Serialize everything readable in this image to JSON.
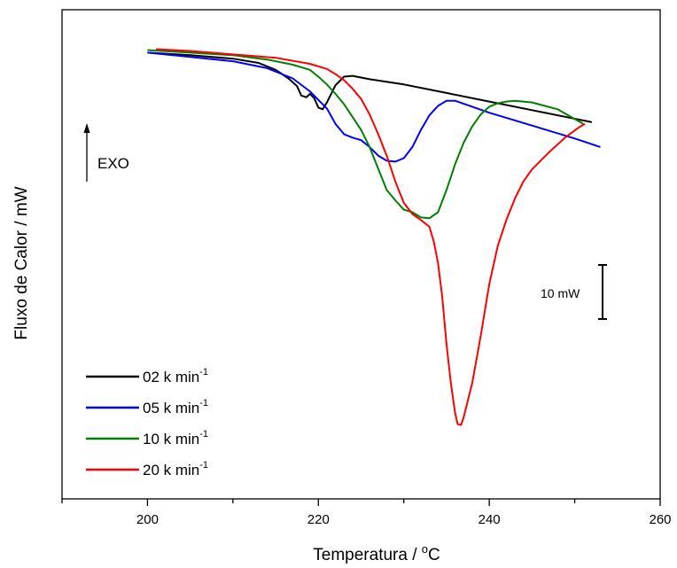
{
  "chart_data": {
    "type": "line",
    "title": "",
    "xlabel": "Temperatura / °C",
    "xlabel_parts": {
      "main": "Temperatura / ",
      "sup": "o",
      "tail": "C"
    },
    "ylabel": "Fluxo de Calor / mW",
    "xlim": [
      190,
      260
    ],
    "ylim": [
      -52,
      5
    ],
    "x_ticks": [
      200,
      220,
      240,
      260
    ],
    "y_ticks_shown": false,
    "grid": false,
    "legend_position": "bottom-left",
    "annotations": {
      "exo_label": "EXO",
      "scale_bar_label": "10 mW",
      "scale_bar_value_mW": 10
    },
    "series": [
      {
        "name": "02 k min-1",
        "legend_main": "02 k min",
        "legend_sup": "-1",
        "color": "#000000",
        "points": [
          [
            200,
            0
          ],
          [
            205,
            -0.3
          ],
          [
            210,
            -0.7
          ],
          [
            213,
            -1.2
          ],
          [
            215,
            -2.0
          ],
          [
            216.5,
            -3.0
          ],
          [
            217.5,
            -3.9
          ],
          [
            218,
            -5.0
          ],
          [
            218.6,
            -5.2
          ],
          [
            219,
            -4.8
          ],
          [
            219.5,
            -5.3
          ],
          [
            220,
            -6.4
          ],
          [
            220.5,
            -6.6
          ],
          [
            221,
            -5.8
          ],
          [
            222,
            -3.8
          ],
          [
            223,
            -2.8
          ],
          [
            224,
            -2.7
          ],
          [
            226,
            -3.1
          ],
          [
            230,
            -3.7
          ],
          [
            235,
            -4.7
          ],
          [
            240,
            -5.7
          ],
          [
            245,
            -6.7
          ],
          [
            250,
            -7.7
          ],
          [
            252,
            -8.1
          ]
        ]
      },
      {
        "name": "05 k min-1",
        "legend_main": "05 k min",
        "legend_sup": "-1",
        "color": "#0000ff",
        "points": [
          [
            200,
            0
          ],
          [
            205,
            -0.5
          ],
          [
            210,
            -1.0
          ],
          [
            214,
            -1.8
          ],
          [
            217,
            -3.0
          ],
          [
            219,
            -4.5
          ],
          [
            221,
            -6.5
          ],
          [
            222,
            -8.3
          ],
          [
            223,
            -9.5
          ],
          [
            224,
            -9.9
          ],
          [
            225,
            -10.2
          ],
          [
            226,
            -11.0
          ],
          [
            227,
            -12.0
          ],
          [
            228,
            -12.6
          ],
          [
            229,
            -12.7
          ],
          [
            230,
            -12.3
          ],
          [
            231,
            -11.0
          ],
          [
            232,
            -9.0
          ],
          [
            233,
            -7.3
          ],
          [
            234,
            -6.2
          ],
          [
            235,
            -5.6
          ],
          [
            236,
            -5.6
          ],
          [
            238,
            -6.3
          ],
          [
            240,
            -7.0
          ],
          [
            245,
            -8.5
          ],
          [
            250,
            -10.0
          ],
          [
            253,
            -11.0
          ]
        ]
      },
      {
        "name": "10 k min-1",
        "legend_main": "10 k min",
        "legend_sup": "-1",
        "color": "#008000",
        "points": [
          [
            200,
            0.3
          ],
          [
            205,
            0
          ],
          [
            210,
            -0.3
          ],
          [
            214,
            -0.8
          ],
          [
            217,
            -1.4
          ],
          [
            219,
            -2.0
          ],
          [
            220,
            -2.8
          ],
          [
            221,
            -3.7
          ],
          [
            222,
            -4.8
          ],
          [
            223,
            -6.0
          ],
          [
            224,
            -7.5
          ],
          [
            225,
            -9.0
          ],
          [
            226,
            -11.0
          ],
          [
            227,
            -13.5
          ],
          [
            228,
            -16.0
          ],
          [
            229,
            -17.2
          ],
          [
            230,
            -18.3
          ],
          [
            231,
            -18.6
          ],
          [
            232,
            -19.2
          ],
          [
            233,
            -19.3
          ],
          [
            234,
            -18.6
          ],
          [
            235,
            -16.0
          ],
          [
            236,
            -13.0
          ],
          [
            237,
            -10.5
          ],
          [
            238,
            -8.6
          ],
          [
            239,
            -7.2
          ],
          [
            240,
            -6.3
          ],
          [
            241,
            -5.9
          ],
          [
            242,
            -5.7
          ],
          [
            243,
            -5.6
          ],
          [
            245,
            -5.8
          ],
          [
            248,
            -6.6
          ],
          [
            251,
            -8.3
          ]
        ]
      },
      {
        "name": "20 k min-1",
        "legend_main": "20 k min",
        "legend_sup": "-1",
        "color": "#ff0000",
        "points": [
          [
            201,
            0.4
          ],
          [
            205,
            0.2
          ],
          [
            210,
            -0.2
          ],
          [
            215,
            -0.6
          ],
          [
            219,
            -1.3
          ],
          [
            221,
            -1.9
          ],
          [
            222,
            -2.5
          ],
          [
            223,
            -3.2
          ],
          [
            224,
            -4.2
          ],
          [
            225,
            -5.4
          ],
          [
            226,
            -7.2
          ],
          [
            227,
            -9.5
          ],
          [
            228,
            -12.0
          ],
          [
            229,
            -15.0
          ],
          [
            230,
            -17.5
          ],
          [
            231,
            -18.8
          ],
          [
            232,
            -19.5
          ],
          [
            233,
            -20.3
          ],
          [
            233.5,
            -22.0
          ],
          [
            234,
            -24.5
          ],
          [
            234.5,
            -28.5
          ],
          [
            235,
            -34.0
          ],
          [
            235.5,
            -38.5
          ],
          [
            236,
            -42.0
          ],
          [
            236.3,
            -43.3
          ],
          [
            236.7,
            -43.4
          ],
          [
            237,
            -42.5
          ],
          [
            238,
            -38.5
          ],
          [
            239,
            -33.0
          ],
          [
            240,
            -27.0
          ],
          [
            241,
            -22.5
          ],
          [
            242,
            -19.5
          ],
          [
            243,
            -17.0
          ],
          [
            244,
            -15.0
          ],
          [
            245,
            -13.6
          ],
          [
            247,
            -11.6
          ],
          [
            249,
            -9.8
          ],
          [
            250.5,
            -8.7
          ],
          [
            251.2,
            -8.3
          ]
        ]
      }
    ]
  }
}
